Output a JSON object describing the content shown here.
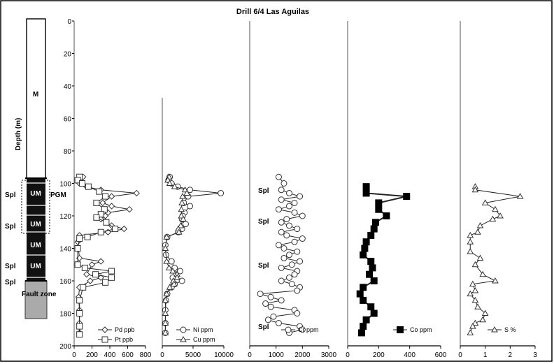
{
  "chart_data": {
    "type": "line",
    "title": "Drill 6/4 Las Aguilas",
    "ylabel": "Depth (m)",
    "ylim": [
      0,
      200
    ],
    "y_inverted": true,
    "yticks": [
      0,
      20,
      40,
      60,
      80,
      100,
      120,
      140,
      160,
      180,
      200
    ],
    "grid": false,
    "log_column": {
      "unit_labels": [
        "M",
        "UM",
        "UM",
        "UM",
        "UM"
      ],
      "spl_labels": [
        "Spl",
        "Spl",
        "Spl",
        "Spl"
      ],
      "pgm_label": "PGM",
      "fault_label": "Fault zone"
    },
    "panels": [
      {
        "xlim": [
          0,
          800
        ],
        "xticks": [
          0,
          200,
          400,
          600,
          800
        ],
        "xtick_labels": [
          "0",
          "200",
          "400",
          "600",
          "800"
        ],
        "series": [
          {
            "name": "Pd ppb",
            "marker": "diamond",
            "points": [
              [
                100,
                96
              ],
              [
                40,
                98
              ],
              [
                60,
                100
              ],
              [
                140,
                102
              ],
              [
                300,
                104
              ],
              [
                700,
                106
              ],
              [
                420,
                108
              ],
              [
                320,
                112
              ],
              [
                420,
                114
              ],
              [
                620,
                116
              ],
              [
                380,
                118
              ],
              [
                350,
                120
              ],
              [
                300,
                122
              ],
              [
                420,
                126
              ],
              [
                560,
                128
              ],
              [
                380,
                130
              ],
              [
                60,
                132
              ],
              [
                40,
                136
              ],
              [
                60,
                146
              ],
              [
                300,
                148
              ],
              [
                200,
                150
              ],
              [
                140,
                156
              ],
              [
                300,
                158
              ],
              [
                180,
                160
              ],
              [
                60,
                164
              ],
              [
                50,
                170
              ],
              [
                60,
                178
              ],
              [
                60,
                186
              ],
              [
                60,
                192
              ]
            ]
          },
          {
            "name": "Pt ppb",
            "marker": "square",
            "points": [
              [
                60,
                96
              ],
              [
                40,
                98
              ],
              [
                90,
                100
              ],
              [
                160,
                102
              ],
              [
                280,
                105
              ],
              [
                350,
                108
              ],
              [
                250,
                112
              ],
              [
                340,
                116
              ],
              [
                300,
                119
              ],
              [
                250,
                121
              ],
              [
                360,
                124
              ],
              [
                460,
                128
              ],
              [
                300,
                130
              ],
              [
                150,
                133
              ],
              [
                60,
                134
              ],
              [
                40,
                140
              ],
              [
                40,
                150
              ],
              [
                120,
                152
              ],
              [
                420,
                154
              ],
              [
                240,
                156
              ],
              [
                420,
                158
              ],
              [
                350,
                161
              ],
              [
                100,
                164
              ],
              [
                60,
                172
              ],
              [
                60,
                180
              ],
              [
                60,
                188
              ],
              [
                60,
                193
              ]
            ]
          }
        ]
      },
      {
        "xlim": [
          0,
          10000
        ],
        "xticks": [
          0,
          5000,
          10000
        ],
        "xtick_labels": [
          "0",
          "5000",
          "10000"
        ],
        "series": [
          {
            "name": "Ni ppm",
            "marker": "circle",
            "points": [
              [
                1200,
                96
              ],
              [
                1000,
                98
              ],
              [
                1500,
                100
              ],
              [
                2500,
                102
              ],
              [
                4500,
                104
              ],
              [
                9500,
                106
              ],
              [
                4200,
                108
              ],
              [
                3500,
                112
              ],
              [
                4500,
                114
              ],
              [
                3600,
                118
              ],
              [
                3300,
                120
              ],
              [
                3200,
                122
              ],
              [
                3800,
                125
              ],
              [
                3200,
                128
              ],
              [
                2600,
                130
              ],
              [
                800,
                133
              ],
              [
                500,
                138
              ],
              [
                600,
                144
              ],
              [
                1500,
                148
              ],
              [
                2000,
                152
              ],
              [
                2900,
                154
              ],
              [
                2200,
                156
              ],
              [
                1700,
                158
              ],
              [
                3200,
                160
              ],
              [
                2000,
                162
              ],
              [
                1500,
                164
              ],
              [
                800,
                168
              ],
              [
                600,
                172
              ],
              [
                500,
                178
              ],
              [
                500,
                186
              ],
              [
                500,
                192
              ]
            ]
          },
          {
            "name": "Cu ppm",
            "marker": "triangle",
            "points": [
              [
                1100,
                96
              ],
              [
                900,
                98
              ],
              [
                1200,
                100
              ],
              [
                2000,
                102
              ],
              [
                3700,
                104
              ],
              [
                4000,
                106
              ],
              [
                3300,
                108
              ],
              [
                3200,
                112
              ],
              [
                3100,
                116
              ],
              [
                3100,
                120
              ],
              [
                3400,
                122
              ],
              [
                3000,
                126
              ],
              [
                2600,
                128
              ],
              [
                2700,
                130
              ],
              [
                700,
                133
              ],
              [
                500,
                140
              ],
              [
                700,
                148
              ],
              [
                1100,
                152
              ],
              [
                1700,
                154
              ],
              [
                2400,
                156
              ],
              [
                2400,
                158
              ],
              [
                1800,
                160
              ],
              [
                1900,
                162
              ],
              [
                1200,
                164
              ],
              [
                700,
                168
              ],
              [
                500,
                172
              ],
              [
                500,
                180
              ],
              [
                500,
                186
              ],
              [
                500,
                192
              ]
            ]
          }
        ]
      },
      {
        "xlim": [
          0,
          3000
        ],
        "xticks": [
          0,
          1000,
          2000,
          3000
        ],
        "xtick_labels": [
          "0",
          "1000",
          "2000",
          "3000"
        ],
        "annotations": [
          {
            "text": "Spl",
            "depth": 104
          },
          {
            "text": "Spl",
            "depth": 123
          },
          {
            "text": "Spl",
            "depth": 150
          },
          {
            "text": "Spl",
            "depth": 188
          }
        ],
        "series": [
          {
            "name": "Cr ppm",
            "marker": "circle",
            "points": [
              [
                1100,
                96
              ],
              [
                1300,
                100
              ],
              [
                1200,
                104
              ],
              [
                1500,
                106
              ],
              [
                1900,
                108
              ],
              [
                1200,
                110
              ],
              [
                1700,
                112
              ],
              [
                1500,
                114
              ],
              [
                1100,
                116
              ],
              [
                1700,
                118
              ],
              [
                2000,
                120
              ],
              [
                1400,
                122
              ],
              [
                1200,
                124
              ],
              [
                1500,
                126
              ],
              [
                1800,
                128
              ],
              [
                1200,
                130
              ],
              [
                1400,
                132
              ],
              [
                2000,
                134
              ],
              [
                1700,
                136
              ],
              [
                1100,
                138
              ],
              [
                1300,
                140
              ],
              [
                1800,
                142
              ],
              [
                1500,
                144
              ],
              [
                1300,
                146
              ],
              [
                1900,
                148
              ],
              [
                1600,
                150
              ],
              [
                1200,
                152
              ],
              [
                1800,
                154
              ],
              [
                1700,
                156
              ],
              [
                1500,
                158
              ],
              [
                1200,
                160
              ],
              [
                1600,
                162
              ],
              [
                1900,
                164
              ],
              [
                1800,
                166
              ],
              [
                400,
                168
              ],
              [
                800,
                170
              ],
              [
                1200,
                172
              ],
              [
                600,
                174
              ],
              [
                800,
                176
              ],
              [
                1700,
                178
              ],
              [
                1800,
                180
              ],
              [
                900,
                182
              ],
              [
                700,
                184
              ],
              [
                1100,
                186
              ],
              [
                1900,
                188
              ],
              [
                2000,
                190
              ],
              [
                1500,
                192
              ]
            ]
          }
        ]
      },
      {
        "xlim": [
          0,
          600
        ],
        "xticks": [
          0,
          200,
          400,
          600
        ],
        "xtick_labels": [
          "0",
          "200",
          "400",
          "600"
        ],
        "series": [
          {
            "name": "Co ppm",
            "marker": "square",
            "points": [
              [
                120,
                102
              ],
              [
                120,
                106
              ],
              [
                380,
                108
              ],
              [
                200,
                112
              ],
              [
                200,
                116
              ],
              [
                250,
                120
              ],
              [
                180,
                124
              ],
              [
                170,
                128
              ],
              [
                150,
                132
              ],
              [
                120,
                136
              ],
              [
                110,
                140
              ],
              [
                100,
                144
              ],
              [
                150,
                148
              ],
              [
                160,
                152
              ],
              [
                140,
                156
              ],
              [
                170,
                160
              ],
              [
                100,
                164
              ],
              [
                80,
                168
              ],
              [
                100,
                172
              ],
              [
                150,
                176
              ],
              [
                170,
                180
              ],
              [
                120,
                184
              ],
              [
                100,
                188
              ],
              [
                90,
                192
              ]
            ]
          }
        ]
      },
      {
        "xlim": [
          0,
          3
        ],
        "xticks": [
          0,
          1,
          2,
          3
        ],
        "xtick_labels": [
          "0",
          "1",
          "2",
          "3"
        ],
        "series": [
          {
            "name": "S %",
            "marker": "triangle",
            "points": [
              [
                0.6,
                102
              ],
              [
                0.6,
                104
              ],
              [
                2.4,
                108
              ],
              [
                1.0,
                112
              ],
              [
                1.4,
                116
              ],
              [
                1.6,
                120
              ],
              [
                1.3,
                122
              ],
              [
                0.8,
                126
              ],
              [
                0.7,
                130
              ],
              [
                0.4,
                132
              ],
              [
                0.4,
                136
              ],
              [
                0.4,
                142
              ],
              [
                0.8,
                146
              ],
              [
                0.6,
                150
              ],
              [
                0.9,
                156
              ],
              [
                1.4,
                160
              ],
              [
                0.5,
                162
              ],
              [
                0.6,
                166
              ],
              [
                0.4,
                168
              ],
              [
                0.6,
                172
              ],
              [
                0.7,
                176
              ],
              [
                1.0,
                180
              ],
              [
                0.9,
                184
              ],
              [
                0.6,
                186
              ],
              [
                0.5,
                188
              ],
              [
                0.4,
                192
              ]
            ]
          }
        ]
      }
    ]
  }
}
